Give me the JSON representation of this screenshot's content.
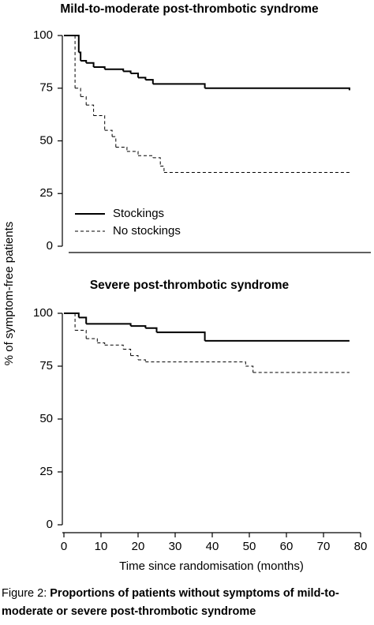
{
  "chart_data": [
    {
      "type": "line",
      "title": "Mild-to-moderate post-thrombotic syndrome",
      "step": "post",
      "y_label": "% of symptom-free patients",
      "xlim": [
        0,
        80
      ],
      "ylim": [
        0,
        100
      ],
      "yticks": [
        0,
        25,
        50,
        75,
        100
      ],
      "legend": "lower left",
      "series": [
        {
          "name": "Stockings",
          "color": "#000000",
          "line_style": "solid",
          "x": [
            0,
            4,
            4.5,
            6,
            8,
            11,
            16,
            18,
            20,
            22,
            24,
            38,
            77
          ],
          "values": [
            100,
            92,
            88,
            87,
            85,
            84,
            83,
            82,
            80,
            79,
            77,
            75,
            74
          ]
        },
        {
          "name": "No stockings",
          "color": "#000000",
          "line_style": "dashed",
          "x": [
            0,
            3,
            4.5,
            6,
            8,
            11,
            13,
            14,
            17,
            20,
            24,
            26,
            27,
            77
          ],
          "values": [
            100,
            75,
            71,
            67,
            62,
            55,
            52,
            47,
            45,
            43,
            42,
            38,
            35,
            35
          ]
        }
      ]
    },
    {
      "type": "line",
      "title": "Severe post-thrombotic syndrome",
      "step": "post",
      "x_label": "Time since randomisation (months)",
      "xlim": [
        0,
        80
      ],
      "xticks": [
        0,
        10,
        20,
        30,
        40,
        50,
        60,
        70,
        80
      ],
      "ylim": [
        0,
        100
      ],
      "yticks": [
        0,
        25,
        50,
        75,
        100
      ],
      "series": [
        {
          "name": "Stockings",
          "color": "#000000",
          "line_style": "solid",
          "x": [
            0,
            4,
            6,
            18,
            22,
            25,
            38,
            77
          ],
          "values": [
            100,
            98,
            95,
            94,
            93,
            91,
            87,
            87
          ]
        },
        {
          "name": "No stockings",
          "color": "#000000",
          "line_style": "dashed",
          "x": [
            0,
            3,
            6,
            9,
            11,
            16,
            18,
            20,
            22,
            49,
            51,
            77
          ],
          "values": [
            100,
            92,
            88,
            86,
            85,
            83,
            80,
            78,
            77,
            75,
            72,
            72
          ]
        }
      ]
    }
  ],
  "caption": {
    "label": "Figure 2:",
    "text": "Proportions of patients without symptoms of mild-to-moderate or severe post-thrombotic syndrome"
  }
}
